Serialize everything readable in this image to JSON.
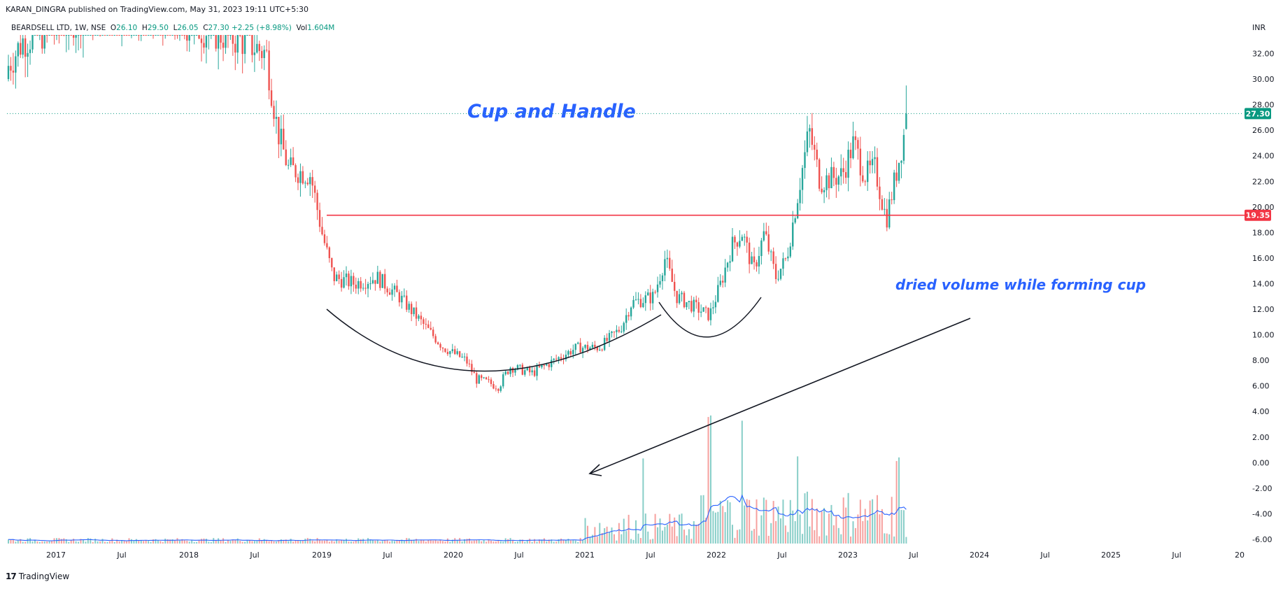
{
  "header": {
    "publisher_line": "KARAN_DINGRA published on TradingView.com, May 31, 2023 19:11 UTC+5:30"
  },
  "symbol_bar": {
    "symbol": "BEARDSELL LTD, 1W, NSE",
    "o_label": "O",
    "o_value": "26.10",
    "h_label": "H",
    "h_value": "29.50",
    "l_label": "L",
    "l_value": "26.05",
    "c_label": "C",
    "c_value": "27.30",
    "change": "+2.25 (+8.98%)",
    "vol_label": "Vol",
    "vol_value": "1.604M"
  },
  "footer": {
    "brand": "TradingView",
    "logo_glyph": "17"
  },
  "annotations": {
    "title": "Cup and Handle",
    "volume_note": "dried volume while forming cup"
  },
  "price_tags": {
    "last": "27.30",
    "level": "19.35"
  },
  "colors": {
    "up": "#26a69a",
    "down": "#ef5350",
    "level_line": "#f23645",
    "annotation": "#2962ff",
    "volume_ma": "#2962ff",
    "last_price_tag": "#089981"
  },
  "chart_data": {
    "type": "candlestick",
    "currency": "INR",
    "timeframe": "1W",
    "ylim": [
      -6,
      34
    ],
    "y_ticks": [
      "32.00",
      "30.00",
      "28.00",
      "26.00",
      "24.00",
      "22.00",
      "20.00",
      "18.00",
      "16.00",
      "14.00",
      "12.00",
      "10.00",
      "8.00",
      "6.00",
      "4.00",
      "2.00",
      "0.00",
      "-2.00",
      "-4.00",
      "-6.00"
    ],
    "x_ticks": [
      "2017",
      "Jul",
      "2018",
      "Jul",
      "2019",
      "Jul",
      "2020",
      "Jul",
      "2021",
      "Jul",
      "2022",
      "Jul",
      "2023",
      "Jul",
      "2024",
      "Jul",
      "2025",
      "Jul",
      "20"
    ],
    "horizontal_level": 19.35,
    "last_price": 27.3,
    "price_path": [
      {
        "date": "2016-08",
        "close": 30
      },
      {
        "date": "2016-10",
        "close": 33
      },
      {
        "date": "2017-06",
        "close": 36
      },
      {
        "date": "2018-06",
        "close": 33
      },
      {
        "date": "2018-08",
        "close": 32
      },
      {
        "date": "2018-09",
        "close": 26
      },
      {
        "date": "2018-10",
        "close": 23
      },
      {
        "date": "2018-12",
        "close": 22.5
      },
      {
        "date": "2019-01",
        "close": 18
      },
      {
        "date": "2019-02",
        "close": 14.5
      },
      {
        "date": "2019-04",
        "close": 14
      },
      {
        "date": "2019-06",
        "close": 14.5
      },
      {
        "date": "2019-08",
        "close": 13
      },
      {
        "date": "2019-10",
        "close": 11
      },
      {
        "date": "2019-12",
        "close": 9
      },
      {
        "date": "2020-02",
        "close": 8
      },
      {
        "date": "2020-03",
        "close": 6.5
      },
      {
        "date": "2020-05",
        "close": 6
      },
      {
        "date": "2020-06",
        "close": 7.5
      },
      {
        "date": "2020-08",
        "close": 7
      },
      {
        "date": "2020-10",
        "close": 8
      },
      {
        "date": "2020-12",
        "close": 9
      },
      {
        "date": "2021-02",
        "close": 9
      },
      {
        "date": "2021-04",
        "close": 10.5
      },
      {
        "date": "2021-05",
        "close": 12.5
      },
      {
        "date": "2021-07",
        "close": 13
      },
      {
        "date": "2021-08",
        "close": 16
      },
      {
        "date": "2021-09",
        "close": 13
      },
      {
        "date": "2021-11",
        "close": 12
      },
      {
        "date": "2021-12",
        "close": 11.5
      },
      {
        "date": "2022-01",
        "close": 14
      },
      {
        "date": "2022-02",
        "close": 17
      },
      {
        "date": "2022-03",
        "close": 18
      },
      {
        "date": "2022-04",
        "close": 15
      },
      {
        "date": "2022-05",
        "close": 18
      },
      {
        "date": "2022-06",
        "close": 14.5
      },
      {
        "date": "2022-07",
        "close": 16
      },
      {
        "date": "2022-08",
        "close": 21
      },
      {
        "date": "2022-09",
        "close": 26
      },
      {
        "date": "2022-10",
        "close": 22
      },
      {
        "date": "2022-12",
        "close": 22.5
      },
      {
        "date": "2023-01",
        "close": 25
      },
      {
        "date": "2023-02",
        "close": 22.5
      },
      {
        "date": "2023-03",
        "close": 23
      },
      {
        "date": "2023-04",
        "close": 19
      },
      {
        "date": "2023-05",
        "close": 23
      },
      {
        "date": "2023-05-31",
        "close": 27.3
      }
    ],
    "volume_spikes": [
      {
        "date": "2021-06",
        "level": "high"
      },
      {
        "date": "2021-12",
        "level": "very high"
      },
      {
        "date": "2022-03",
        "level": "very high"
      },
      {
        "date": "2022-08",
        "level": "high"
      },
      {
        "date": "2023-05",
        "level": "high"
      }
    ]
  }
}
